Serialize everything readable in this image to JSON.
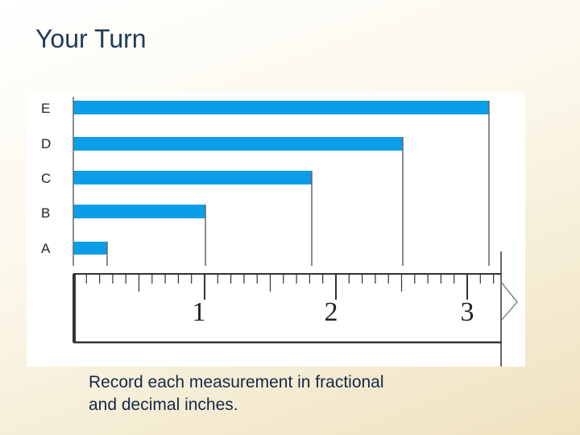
{
  "header": {
    "title": "Your Turn"
  },
  "diagram": {
    "bar_labels": [
      "E",
      "D",
      "C",
      "B",
      "A"
    ],
    "ruler_labels": [
      "1",
      "2",
      "3"
    ]
  },
  "body": {
    "lines": [
      "Record each measurement in fractional",
      "and decimal inches."
    ]
  }
}
